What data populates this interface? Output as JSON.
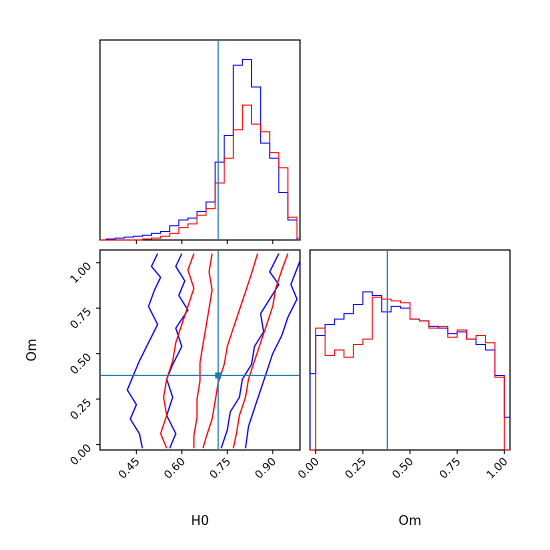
{
  "chart_data": [
    {
      "panel": "H0-histogram",
      "type": "histogram",
      "x_range": [
        0.33,
        0.99
      ],
      "truth_line": 0.72,
      "series": [
        {
          "color": "#0000ff",
          "bins": [
            0.32,
            0.35,
            0.38,
            0.41,
            0.44,
            0.47,
            0.5,
            0.53,
            0.56,
            0.59,
            0.62,
            0.65,
            0.68,
            0.71,
            0.74,
            0.77,
            0.8,
            0.83,
            0.86,
            0.89,
            0.92,
            0.95,
            0.98,
            1.01
          ],
          "counts": [
            0.0,
            0.5,
            1.0,
            1.5,
            2.0,
            2.5,
            3.5,
            4.5,
            7.5,
            10.5,
            11.5,
            15.0,
            20.0,
            41.0,
            55.0,
            92.0,
            95.0,
            80.5,
            51.0,
            43.0,
            25.0,
            10.5,
            0.0
          ]
        },
        {
          "color": "#ff0000",
          "bins": [
            0.32,
            0.35,
            0.38,
            0.41,
            0.44,
            0.47,
            0.5,
            0.53,
            0.56,
            0.59,
            0.62,
            0.65,
            0.68,
            0.71,
            0.74,
            0.77,
            0.8,
            0.83,
            0.86,
            0.89,
            0.92,
            0.95,
            0.98,
            1.01
          ],
          "counts": [
            0.0,
            0.0,
            0.0,
            0.0,
            0.0,
            0.5,
            1.0,
            2.0,
            3.5,
            6.5,
            8.5,
            13.0,
            16.5,
            30.0,
            43.0,
            58.0,
            71.0,
            61.0,
            57.0,
            46.0,
            38.0,
            12.0,
            1.0
          ]
        }
      ]
    },
    {
      "panel": "H0-Om-contours",
      "type": "contour",
      "x_range": [
        0.33,
        0.99
      ],
      "y_range": [
        -0.03,
        1.07
      ],
      "truth_point": [
        0.72,
        0.38
      ],
      "xlabel": "H0",
      "ylabel": "Om",
      "xticks": [
        0.45,
        0.6,
        0.75,
        0.9
      ],
      "xtick_labels": [
        "0.45",
        "0.60",
        "0.75",
        "0.90"
      ],
      "yticks": [
        0.0,
        0.25,
        0.5,
        0.75,
        1.0
      ],
      "ytick_labels": [
        "0.00",
        "0.25",
        "0.50",
        "0.75",
        "1.00"
      ],
      "series_colors": [
        "#0000ff",
        "#ff0000"
      ]
    },
    {
      "panel": "Om-histogram",
      "type": "histogram",
      "x_range": [
        -0.03,
        1.03
      ],
      "truth_line": 0.38,
      "xlabel": "Om",
      "xticks": [
        0.0,
        0.25,
        0.5,
        0.75,
        1.0
      ],
      "xtick_labels": [
        "0.00",
        "0.25",
        "0.50",
        "0.75",
        "1.00"
      ],
      "series": [
        {
          "color": "#0000ff",
          "bins": [
            -0.03,
            0.0,
            0.05,
            0.1,
            0.15,
            0.2,
            0.25,
            0.3,
            0.35,
            0.4,
            0.45,
            0.5,
            0.55,
            0.6,
            0.65,
            0.7,
            0.75,
            0.8,
            0.85,
            0.9,
            0.95,
            1.0,
            1.03
          ],
          "counts": [
            42,
            63,
            69,
            72,
            75,
            80,
            87,
            85,
            76,
            79,
            78,
            72,
            71,
            68,
            67,
            64,
            65,
            61,
            58,
            55,
            41,
            18
          ]
        },
        {
          "color": "#ff0000",
          "bins": [
            -0.03,
            0.0,
            0.05,
            0.1,
            0.15,
            0.2,
            0.25,
            0.3,
            0.35,
            0.4,
            0.45,
            0.5,
            0.55,
            0.6,
            0.65,
            0.7,
            0.75,
            0.8,
            0.85,
            0.9,
            0.95,
            1.0,
            1.03
          ],
          "counts": [
            0,
            67,
            52,
            55,
            51,
            58,
            61,
            84,
            83,
            82,
            81,
            72,
            71,
            67,
            68,
            62,
            66,
            61,
            63,
            59,
            40,
            0
          ]
        }
      ]
    }
  ]
}
